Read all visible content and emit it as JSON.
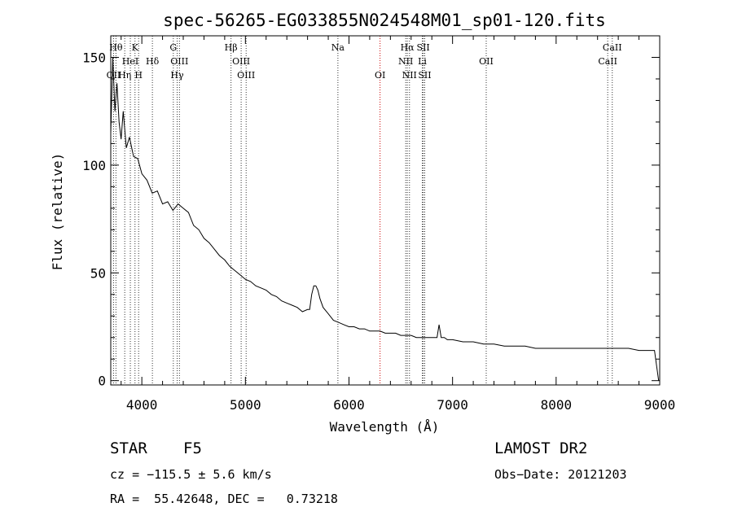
{
  "chart_data": {
    "type": "line",
    "title": "spec-56265-EG033855N024548M01_sp01-120.fits",
    "xlabel": "Wavelength (Å)",
    "ylabel": "Flux (relative)",
    "xlim": [
      3700,
      9000
    ],
    "ylim": [
      -2,
      160
    ],
    "x_ticks": [
      4000,
      5000,
      6000,
      7000,
      8000,
      9000
    ],
    "y_ticks": [
      0,
      50,
      100,
      150
    ],
    "series": [
      {
        "color": "#000000",
        "x": [
          3700,
          3720,
          3740,
          3760,
          3780,
          3800,
          3820,
          3850,
          3880,
          3920,
          3960,
          4000,
          4050,
          4100,
          4150,
          4200,
          4250,
          4300,
          4350,
          4400,
          4450,
          4500,
          4550,
          4600,
          4650,
          4700,
          4750,
          4800,
          4850,
          4900,
          4950,
          5000,
          5050,
          5100,
          5150,
          5200,
          5250,
          5300,
          5350,
          5400,
          5450,
          5500,
          5550,
          5600,
          5620,
          5640,
          5660,
          5680,
          5700,
          5720,
          5750,
          5800,
          5850,
          5900,
          5950,
          6000,
          6050,
          6100,
          6150,
          6200,
          6250,
          6300,
          6350,
          6400,
          6450,
          6500,
          6550,
          6600,
          6650,
          6700,
          6750,
          6800,
          6850,
          6870,
          6890,
          6920,
          6950,
          7000,
          7100,
          7200,
          7300,
          7400,
          7500,
          7600,
          7700,
          7800,
          7900,
          8000,
          8100,
          8200,
          8300,
          8400,
          8500,
          8600,
          8700,
          8800,
          8900,
          8950,
          8990
        ],
        "y": [
          115,
          150,
          125,
          138,
          120,
          112,
          125,
          108,
          113,
          104,
          103,
          96,
          93,
          87,
          88,
          82,
          83,
          79,
          82,
          80,
          78,
          72,
          70,
          66,
          64,
          61,
          58,
          56,
          53,
          51,
          49,
          47,
          46,
          44,
          43,
          42,
          40,
          39,
          37,
          36,
          35,
          34,
          32,
          33,
          33,
          40,
          44,
          44,
          42,
          38,
          34,
          31,
          28,
          27,
          26,
          25,
          25,
          24,
          24,
          23,
          23,
          23,
          22,
          22,
          22,
          21,
          21,
          21,
          20,
          20,
          20,
          20,
          20,
          26,
          20,
          20,
          19,
          19,
          18,
          18,
          17,
          17,
          16,
          16,
          16,
          15,
          15,
          15,
          15,
          15,
          15,
          15,
          15,
          15,
          15,
          14,
          14,
          14,
          0
        ]
      }
    ],
    "line_markers_black": [
      {
        "label": "Hθ",
        "x": 3750
      },
      {
        "label": "K",
        "x": 3934
      },
      {
        "label": "HeI",
        "x": 3889
      },
      {
        "label": "Hδ",
        "x": 4102
      },
      {
        "label": "OII",
        "x": 3727
      },
      {
        "label": "Hη",
        "x": 3835
      },
      {
        "label": "H",
        "x": 3969
      },
      {
        "label": "G",
        "x": 4304
      },
      {
        "label": "OIII",
        "x": 4363
      },
      {
        "label": "Hγ",
        "x": 4341
      },
      {
        "label": "Hβ",
        "x": 4861
      },
      {
        "label": "OIII",
        "x": 4959
      },
      {
        "label": "OIII",
        "x": 5007
      },
      {
        "label": "Na",
        "x": 5893
      },
      {
        "label": "Hα",
        "x": 6563
      },
      {
        "label": "SII",
        "x": 6717
      },
      {
        "label": "NII",
        "x": 6548
      },
      {
        "label": "Li",
        "x": 6708
      },
      {
        "label": "NII",
        "x": 6584
      },
      {
        "label": "SII",
        "x": 6731
      },
      {
        "label": "OII",
        "x": 7325
      },
      {
        "label": "CaII",
        "x": 8542
      },
      {
        "label": "CaII",
        "x": 8498
      }
    ],
    "line_markers_red": [
      {
        "label": "OI",
        "x": 6300
      }
    ]
  },
  "info": {
    "class_label": "STAR",
    "subclass": "F5",
    "survey": "LAMOST DR2",
    "cz": "cz = −115.5 ± 5.6 km/s",
    "obs_date": "Obs−Date: 20121203",
    "coords": "RA =  55.42648, DEC =   0.73218"
  },
  "colors": {
    "axis": "#000000",
    "marker_black": "#333333",
    "marker_red": "#cc0000",
    "spectrum": "#000000"
  }
}
